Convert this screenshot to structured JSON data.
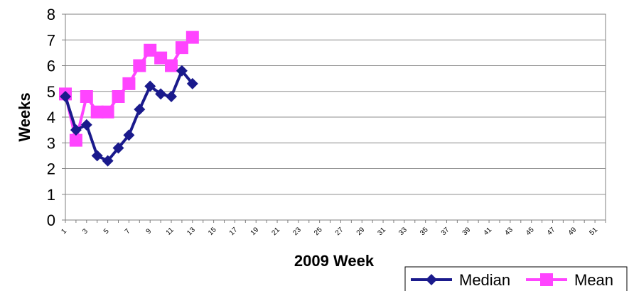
{
  "chart_data": {
    "type": "line",
    "xlabel": "2009 Week",
    "ylabel": "Weeks",
    "ylim": [
      0,
      8
    ],
    "xlim": [
      1,
      52
    ],
    "x_ticks": [
      1,
      3,
      5,
      7,
      9,
      11,
      13,
      15,
      17,
      19,
      21,
      23,
      25,
      27,
      29,
      31,
      33,
      35,
      37,
      39,
      41,
      43,
      45,
      47,
      49,
      51
    ],
    "y_ticks": [
      0,
      1,
      2,
      3,
      4,
      5,
      6,
      7,
      8
    ],
    "grid": true,
    "legend_position": "bottom-right",
    "series": [
      {
        "name": "Median",
        "color": "#1a1a8c",
        "marker": "diamond",
        "x": [
          1,
          2,
          3,
          4,
          5,
          6,
          7,
          8,
          9,
          10,
          11,
          12,
          13,
          14
        ],
        "values": [
          4.8,
          3.5,
          3.7,
          2.5,
          2.3,
          2.8,
          3.3,
          4.3,
          5.2,
          4.9,
          4.8,
          5.8,
          5.3,
          null
        ]
      },
      {
        "name": "Mean",
        "color": "#ff44ff",
        "marker": "square",
        "x": [
          1,
          2,
          3,
          4,
          5,
          6,
          7,
          8,
          9,
          10,
          11,
          12,
          13,
          14
        ],
        "values": [
          4.9,
          3.1,
          4.8,
          4.2,
          4.2,
          4.8,
          5.3,
          6.0,
          6.6,
          6.3,
          6.0,
          6.7,
          7.1,
          null
        ]
      }
    ]
  }
}
